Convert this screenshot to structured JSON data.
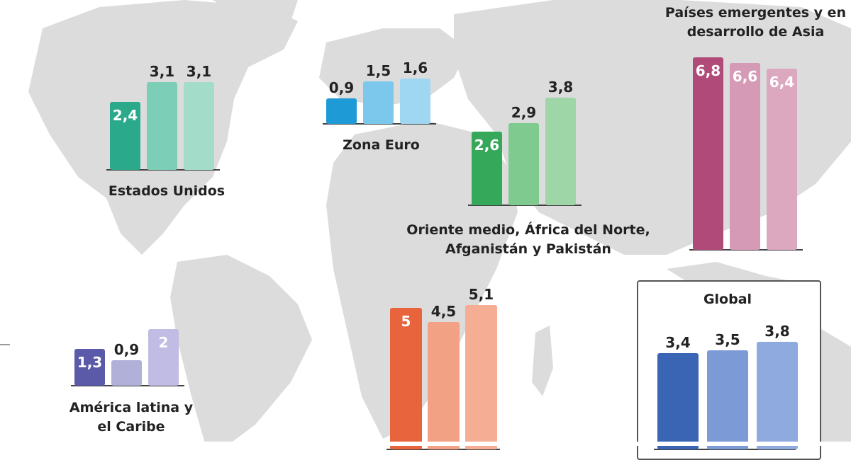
{
  "chart_data": [
    {
      "type": "bar",
      "title": "Estados Unidos",
      "categories": [
        "",
        "",
        ""
      ],
      "values": [
        2.4,
        3.1,
        3.1
      ],
      "labels": [
        "2,4",
        "3,1",
        "3,1"
      ],
      "colors": [
        "#2aaa8a",
        "#7ccfb6",
        "#a4dcca"
      ],
      "label_inside": [
        true,
        false,
        false
      ]
    },
    {
      "type": "bar",
      "title": "Zona Euro",
      "categories": [
        "",
        "",
        ""
      ],
      "values": [
        0.9,
        1.5,
        1.6
      ],
      "labels": [
        "0,9",
        "1,5",
        "1,6"
      ],
      "colors": [
        "#1e9bd7",
        "#7cc8ec",
        "#9fd6f1"
      ],
      "label_inside": [
        false,
        false,
        false
      ]
    },
    {
      "type": "bar",
      "title": "Oriente medio, África del Norte, Afganistán y Pakistán",
      "categories": [
        "",
        "",
        ""
      ],
      "values": [
        2.6,
        2.9,
        3.8
      ],
      "labels": [
        "2,6",
        "2,9",
        "3,8"
      ],
      "colors": [
        "#36a85a",
        "#7fcb8f",
        "#9ed6a8"
      ],
      "label_inside": [
        true,
        false,
        false
      ]
    },
    {
      "type": "bar",
      "title": "Países emergentes y en desarrollo de Asia",
      "categories": [
        "",
        "",
        ""
      ],
      "values": [
        6.8,
        6.6,
        6.4
      ],
      "labels": [
        "6,8",
        "6,6",
        "6,4"
      ],
      "colors": [
        "#b04a78",
        "#d59ab5",
        "#dba8bf"
      ],
      "label_inside": [
        true,
        true,
        true
      ]
    },
    {
      "type": "bar",
      "title": "América latina y el Caribe",
      "categories": [
        "",
        "",
        ""
      ],
      "values": [
        1.3,
        0.9,
        2
      ],
      "labels": [
        "1,3",
        "0,9",
        "2"
      ],
      "colors": [
        "#5a5aa8",
        "#b0b0d8",
        "#c0bce3"
      ],
      "label_inside": [
        true,
        false,
        true
      ]
    },
    {
      "type": "bar",
      "title": "",
      "categories": [
        "",
        "",
        ""
      ],
      "values": [
        5,
        4.5,
        5.1
      ],
      "labels": [
        "5",
        "4,5",
        "5,1"
      ],
      "colors": [
        "#e8643c",
        "#f2a184",
        "#f5ae94"
      ],
      "label_inside": [
        true,
        false,
        false
      ]
    },
    {
      "type": "bar",
      "title": "Global",
      "categories": [
        "",
        "",
        ""
      ],
      "values": [
        3.4,
        3.5,
        3.8
      ],
      "labels": [
        "3,4",
        "3,5",
        "3,8"
      ],
      "colors": [
        "#3a64b4",
        "#7c9ad6",
        "#8eaadf"
      ],
      "label_inside": [
        false,
        false,
        false
      ]
    }
  ]
}
